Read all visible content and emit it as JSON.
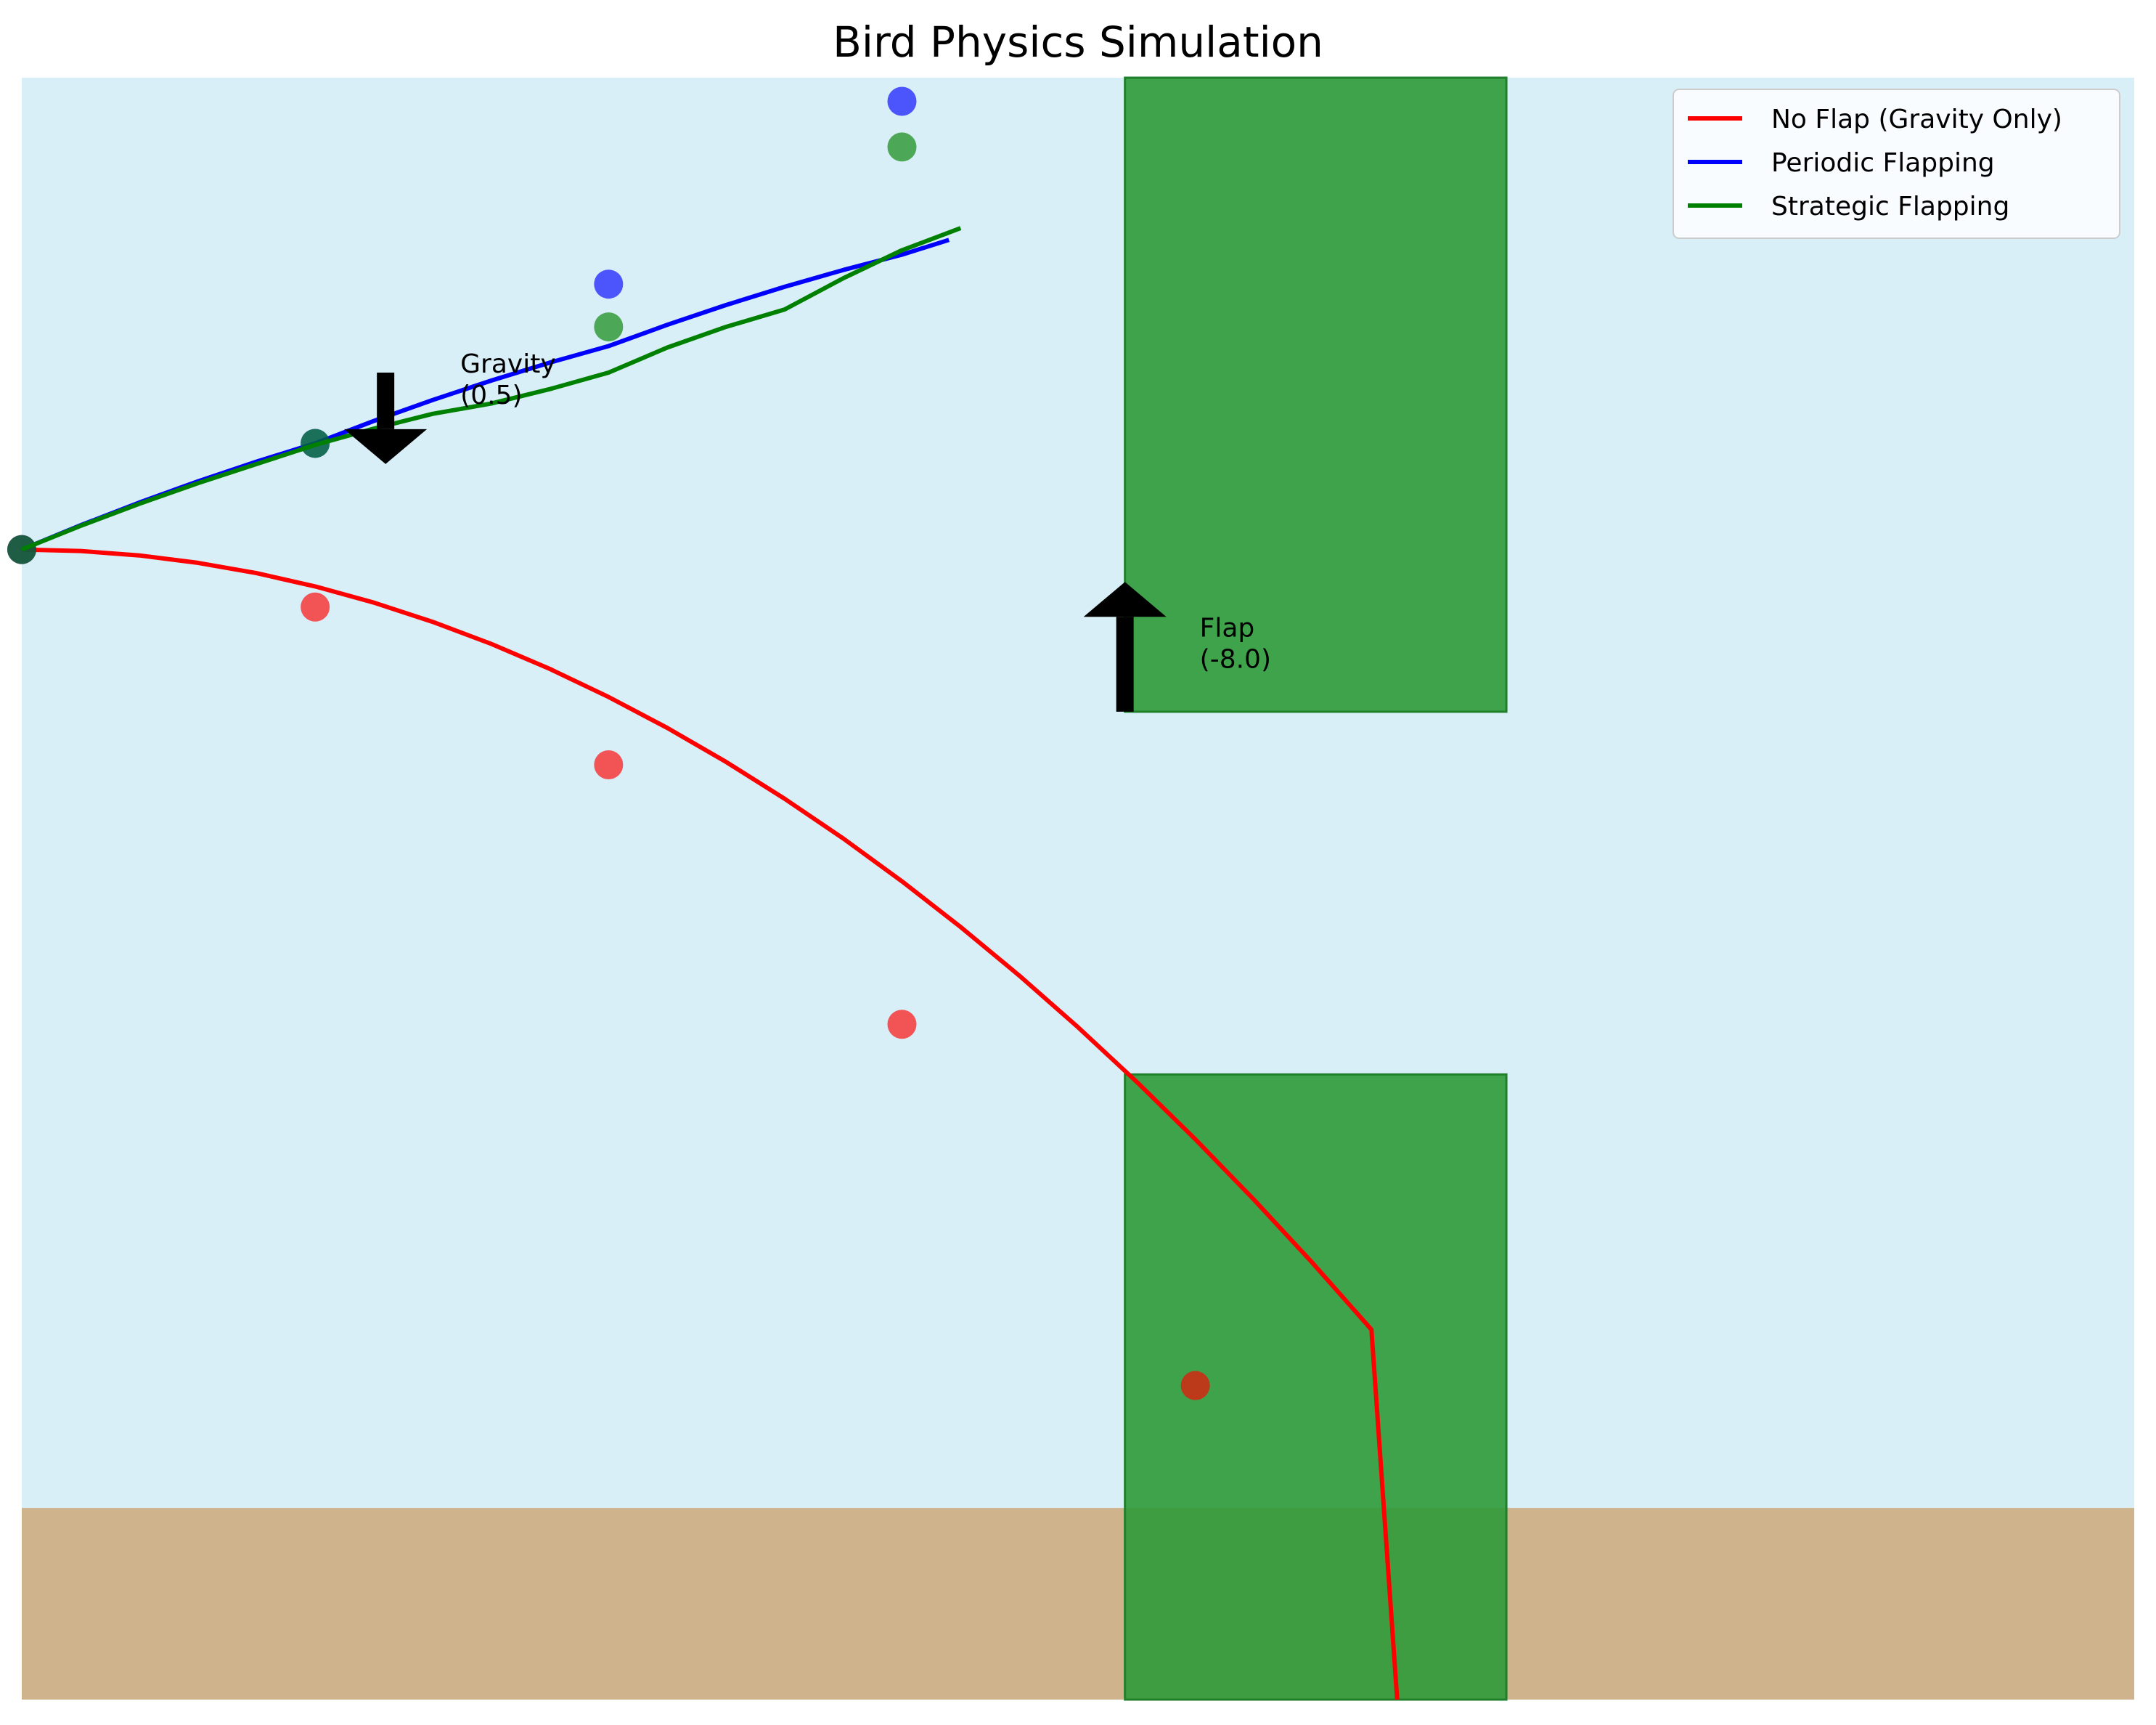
{
  "chart_data": {
    "type": "line",
    "title": "Bird Physics Simulation",
    "xlabel": "",
    "ylabel": "",
    "xlim": [
      0,
      360
    ],
    "ylim": [
      550,
      0
    ],
    "grid": false,
    "axes_visible": false,
    "legend_position": "top-right",
    "colors": {
      "sky": "#d9eff7",
      "ground": "#cfb38d",
      "pipe": "#2e9a37",
      "pipe_edge": "#1f7f2a",
      "no_flap": "#ff0000",
      "periodic": "#0000ff",
      "strategic": "#008000",
      "arrow": "#000000"
    },
    "ground": {
      "top_y": 485,
      "bottom_y": 550
    },
    "pipes": [
      {
        "x_start": 188,
        "x_end": 253,
        "top_pipe_bottom_y": 215,
        "bottom_pipe_top_y": 338
      }
    ],
    "series": [
      {
        "name": "No Flap (Gravity Only)",
        "color": "#ff0000",
        "x": [
          0,
          10,
          20,
          30,
          40,
          50,
          60,
          70,
          80,
          90,
          100,
          110,
          120,
          130,
          140,
          150,
          160,
          170,
          180,
          190,
          200,
          210,
          220,
          230,
          234.4
        ],
        "y": [
          160,
          160.5,
          162,
          164.5,
          168,
          172.5,
          178,
          184.5,
          192,
          200.5,
          210,
          220.5,
          232,
          244.5,
          258,
          272.5,
          288,
          304.5,
          322,
          340.5,
          360,
          380.5,
          402,
          424.5,
          550
        ],
        "markers": [
          [
            0,
            160
          ],
          [
            50,
            179.5
          ],
          [
            100,
            233
          ],
          [
            150,
            321
          ],
          [
            200,
            443.5
          ]
        ]
      },
      {
        "name": "Periodic Flapping",
        "color": "#0000ff",
        "x": [
          0,
          10,
          20,
          30,
          40,
          50,
          60,
          70,
          80,
          90,
          100,
          110,
          120,
          130,
          140,
          150,
          158
        ],
        "y": [
          160,
          151.8,
          144.1,
          136.9,
          130.2,
          124,
          116.4,
          109.3,
          102.7,
          96.6,
          91,
          83.8,
          77.1,
          70.9,
          65.2,
          60,
          55
        ],
        "markers": [
          [
            0,
            160
          ],
          [
            50,
            124
          ],
          [
            100,
            70
          ],
          [
            150,
            8
          ]
        ]
      },
      {
        "name": "Strategic Flapping",
        "color": "#008000",
        "x": [
          0,
          10,
          20,
          30,
          40,
          50,
          60,
          70,
          80,
          90,
          100,
          110,
          120,
          130,
          140,
          150,
          160
        ],
        "y": [
          160,
          152,
          144.5,
          137.5,
          131,
          124.5,
          119,
          114,
          110.5,
          105.6,
          100,
          91.5,
          84.5,
          78.6,
          68,
          58.5,
          51
        ],
        "markers": [
          [
            0,
            160
          ],
          [
            50,
            124
          ],
          [
            100,
            84.5
          ],
          [
            150,
            23.5
          ]
        ]
      }
    ],
    "annotations": [
      {
        "label_line1": "Gravity",
        "label_line2": "(0.5)",
        "direction": "down",
        "x": 62,
        "y_from": 100,
        "y_to": 131
      },
      {
        "label_line1": "Flap",
        "label_line2": "(-8.0)",
        "direction": "up",
        "x": 188,
        "y_from": 215,
        "y_to": 171
      }
    ]
  }
}
